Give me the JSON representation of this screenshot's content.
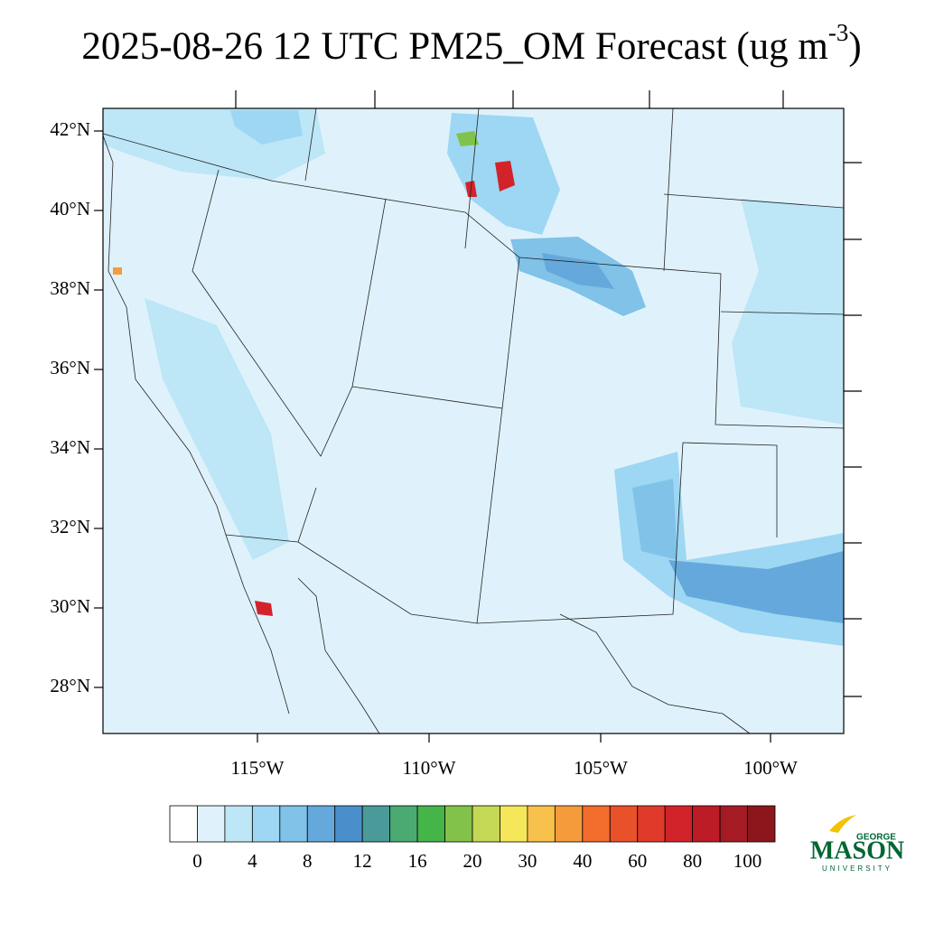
{
  "title": {
    "main": "2025-08-26 12 UTC PM25_OM Forecast (ug m",
    "superscript": "-3",
    "close": ")"
  },
  "map": {
    "lat_labels": [
      "42°N",
      "40°N",
      "38°N",
      "36°N",
      "34°N",
      "32°N",
      "30°N",
      "28°N"
    ],
    "lon_labels": [
      "115°W",
      "110°W",
      "105°W",
      "100°W"
    ]
  },
  "colorbar": {
    "colors": [
      "#ffffff",
      "#dff2fb",
      "#bde6f6",
      "#9dd7f3",
      "#80c2e8",
      "#65a9dc",
      "#4a8fcc",
      "#4a9a9a",
      "#4aaa72",
      "#46b549",
      "#82c14a",
      "#c5d856",
      "#f6e65a",
      "#f8c14b",
      "#f59b3c",
      "#f26c2c",
      "#e9512b",
      "#e03a2a",
      "#d2232a",
      "#bb1c26",
      "#a51b24",
      "#8b171c"
    ],
    "labels": [
      "0",
      "4",
      "8",
      "12",
      "16",
      "20",
      "30",
      "40",
      "60",
      "80",
      "100"
    ]
  },
  "logo": {
    "top": "GEORGE",
    "name": "MASON",
    "bottom": "UNIVERSITY"
  }
}
